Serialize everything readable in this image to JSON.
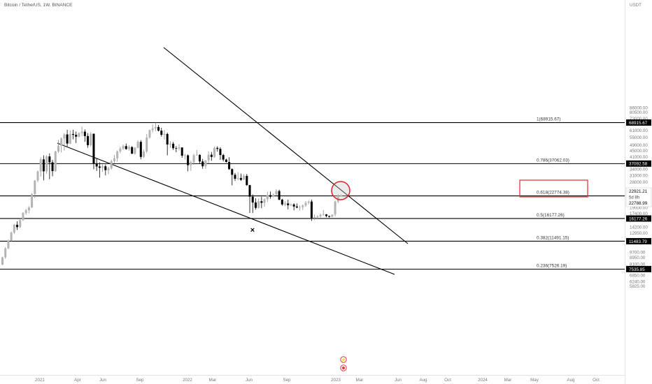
{
  "header": {
    "title": "Bitcoin / TetherUS, 1W, BINANCE",
    "currency": "USDT"
  },
  "chart_data": {
    "type": "candlestick",
    "y_axis_ticks": [
      "86000.00",
      "80500.00",
      "73000.00",
      "61000.00",
      "55000.00",
      "49000.00",
      "45000.00",
      "41000.00",
      "34000.00",
      "31000.00",
      "28000.00",
      "19000.00",
      "17400.00",
      "14200.00",
      "12950.00",
      "9700.00",
      "8950.00",
      "8100.00",
      "6850.00",
      "6240.00",
      "5825.00"
    ],
    "x_axis_ticks": [
      "2021",
      "Apr",
      "Jun",
      "Sep",
      "2022",
      "Mar",
      "Jun",
      "Sep",
      "2023",
      "Mar",
      "Jun",
      "Aug",
      "Oct",
      "2024",
      "Mar",
      "May",
      "Aug",
      "Oct"
    ],
    "fib_levels": [
      {
        "label": "1(68915.67)",
        "badge": "68915.67"
      },
      {
        "label": "0.786(37062.03)",
        "badge": "37092.58"
      },
      {
        "label": "0.618(22774.38)",
        "badge": "22921.21"
      },
      {
        "label": "0.5(16177.26)",
        "badge": "16177.26"
      },
      {
        "label": "0.382(11491.15)",
        "badge": "11483.79"
      },
      {
        "label": "0.236(7526.19)",
        "badge": "7535.85"
      }
    ],
    "last_price": {
      "price": "22921.21",
      "countdown": "5d 8h",
      "open": "22788.99"
    },
    "marker": "×",
    "candles": [
      [
        8050,
        9100,
        8000,
        9000
      ],
      [
        9000,
        10500,
        8800,
        10300
      ],
      [
        10300,
        11800,
        10200,
        11600
      ],
      [
        11600,
        13300,
        11400,
        13100
      ],
      [
        13100,
        14900,
        12800,
        14700
      ],
      [
        14700,
        15500,
        13600,
        14200
      ],
      [
        14200,
        16200,
        14000,
        15800
      ],
      [
        15800,
        17800,
        15600,
        17600
      ],
      [
        17600,
        18700,
        17100,
        18300
      ],
      [
        18300,
        19500,
        17500,
        19100
      ],
      [
        19100,
        23700,
        19000,
        23400
      ],
      [
        23400,
        28900,
        22000,
        28700
      ],
      [
        28700,
        33500,
        28000,
        32900
      ],
      [
        32900,
        40800,
        30500,
        39500
      ],
      [
        39500,
        42000,
        28800,
        33000
      ],
      [
        33000,
        42000,
        31800,
        41300
      ],
      [
        41300,
        43300,
        29300,
        37800
      ],
      [
        37800,
        39200,
        30600,
        33100
      ],
      [
        33100,
        45000,
        32800,
        44500
      ],
      [
        44500,
        53100,
        43600,
        48500
      ],
      [
        48500,
        55000,
        43900,
        54200
      ],
      [
        54200,
        58700,
        45100,
        57600
      ],
      [
        57600,
        61700,
        48100,
        50200
      ],
      [
        50200,
        61100,
        49800,
        58000
      ],
      [
        58000,
        61800,
        53500,
        57300
      ],
      [
        57300,
        60200,
        50600,
        55700
      ],
      [
        55700,
        59500,
        55100,
        58800
      ],
      [
        58800,
        64800,
        56100,
        60100
      ],
      [
        60100,
        62200,
        51500,
        56200
      ],
      [
        56200,
        58800,
        47100,
        49000
      ],
      [
        49000,
        59600,
        48000,
        58200
      ],
      [
        58200,
        58400,
        34000,
        37000
      ],
      [
        37000,
        40000,
        33200,
        35500
      ],
      [
        35500,
        37800,
        30000,
        34800
      ],
      [
        34800,
        36700,
        32700,
        35600
      ],
      [
        35600,
        36600,
        31000,
        33600
      ],
      [
        33600,
        35300,
        31600,
        34500
      ],
      [
        34500,
        39300,
        33900,
        38400
      ],
      [
        38400,
        42300,
        37500,
        40200
      ],
      [
        40200,
        45200,
        38200,
        44600
      ],
      [
        44600,
        47900,
        43400,
        46500
      ],
      [
        46500,
        49400,
        45600,
        48300
      ],
      [
        48300,
        50200,
        45700,
        46200
      ],
      [
        46200,
        48800,
        45100,
        47600
      ],
      [
        47600,
        48200,
        42800,
        43100
      ],
      [
        43100,
        47600,
        42400,
        47100
      ],
      [
        47100,
        52700,
        46700,
        51500
      ],
      [
        51500,
        52900,
        39600,
        41000
      ],
      [
        41000,
        45800,
        40400,
        44500
      ],
      [
        44500,
        58000,
        43400,
        55000
      ],
      [
        55000,
        62000,
        54000,
        61500
      ],
      [
        61500,
        67000,
        59500,
        63000
      ],
      [
        63000,
        69000,
        60500,
        64500
      ],
      [
        64500,
        66500,
        60300,
        61000
      ],
      [
        61000,
        63700,
        55700,
        57300
      ],
      [
        57300,
        61600,
        53300,
        58000
      ],
      [
        58000,
        59200,
        42000,
        49500
      ],
      [
        49500,
        52000,
        47000,
        50100
      ],
      [
        50100,
        51500,
        45600,
        46800
      ],
      [
        46800,
        48300,
        44000,
        46600
      ],
      [
        46600,
        49700,
        45200,
        47300
      ],
      [
        47300,
        47400,
        40500,
        41800
      ],
      [
        41800,
        43000,
        39400,
        42000
      ],
      [
        42000,
        42600,
        33000,
        36200
      ],
      [
        36200,
        38900,
        33200,
        37900
      ],
      [
        37900,
        43000,
        36500,
        42000
      ],
      [
        42000,
        45500,
        41800,
        42300
      ],
      [
        42300,
        42700,
        37000,
        38300
      ],
      [
        38300,
        39800,
        34300,
        35600
      ],
      [
        35600,
        38700,
        34300,
        39000
      ],
      [
        39000,
        44600,
        37200,
        42400
      ],
      [
        42400,
        44200,
        38700,
        41000
      ],
      [
        41000,
        48000,
        40500,
        47000
      ],
      [
        47000,
        48100,
        44400,
        46300
      ],
      [
        46300,
        47500,
        39200,
        42200
      ],
      [
        42200,
        43000,
        38300,
        39400
      ],
      [
        39400,
        39900,
        37700,
        38000
      ],
      [
        38000,
        40800,
        33700,
        34100
      ],
      [
        34100,
        34500,
        26700,
        31300
      ],
      [
        31300,
        32200,
        28600,
        29500
      ],
      [
        29500,
        32600,
        28800,
        29800
      ],
      [
        29800,
        31900,
        28600,
        29000
      ],
      [
        29000,
        31600,
        29000,
        30800
      ],
      [
        30800,
        31700,
        26500,
        26800
      ],
      [
        26800,
        26900,
        17600,
        22500
      ],
      [
        22500,
        23300,
        17600,
        20600
      ],
      [
        20600,
        22000,
        18500,
        19000
      ],
      [
        19000,
        21900,
        18800,
        21000
      ],
      [
        21000,
        22500,
        18900,
        20500
      ],
      [
        20500,
        22000,
        19300,
        21600
      ],
      [
        21600,
        24200,
        20800,
        23000
      ],
      [
        23000,
        24300,
        21800,
        22500
      ],
      [
        22500,
        23700,
        22300,
        23200
      ],
      [
        23200,
        25200,
        23000,
        24500
      ],
      [
        24500,
        25000,
        21300,
        21500
      ],
      [
        21500,
        21800,
        19600,
        20000
      ],
      [
        20000,
        21000,
        19500,
        20300
      ],
      [
        20300,
        21500,
        18600,
        19800
      ],
      [
        19800,
        20300,
        19500,
        20000
      ],
      [
        20000,
        20400,
        18300,
        19400
      ],
      [
        19400,
        20300,
        18900,
        19100
      ],
      [
        19100,
        19700,
        18200,
        19200
      ],
      [
        19200,
        20000,
        18400,
        19700
      ],
      [
        19700,
        21100,
        19300,
        20500
      ],
      [
        20500,
        21200,
        20000,
        20900
      ],
      [
        20900,
        21500,
        15600,
        16300
      ],
      [
        16300,
        17200,
        15800,
        16500
      ],
      [
        16500,
        17000,
        16000,
        16700
      ],
      [
        16700,
        17400,
        16400,
        17100
      ],
      [
        17100,
        18400,
        16900,
        17200
      ],
      [
        17200,
        17300,
        16500,
        16800
      ],
      [
        16800,
        16900,
        16400,
        16600
      ],
      [
        16600,
        17200,
        16500,
        17200
      ],
      [
        17200,
        21200,
        16700,
        20900
      ],
      [
        20900,
        23400,
        20400,
        22800
      ],
      [
        22800,
        23300,
        22500,
        22921
      ]
    ]
  }
}
